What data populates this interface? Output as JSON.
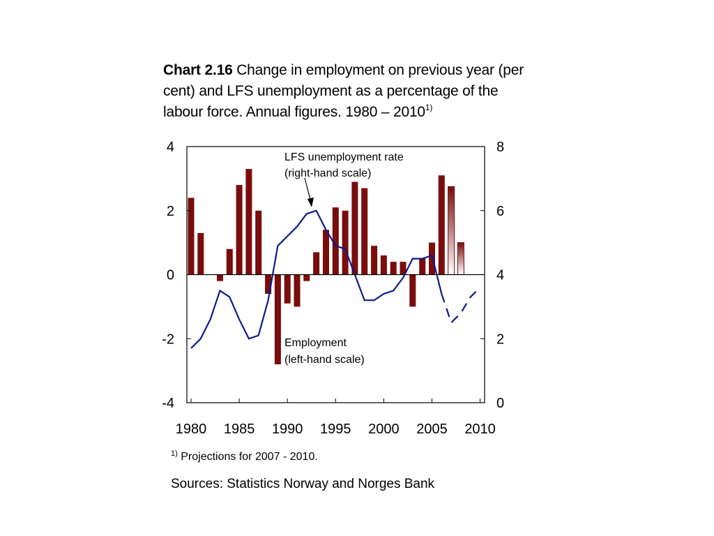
{
  "title": {
    "number": "Chart 2.16",
    "text": "Change in employment on previous year (per cent) and LFS unemployment as a percentage of the labour force. Annual figures. 1980 – 2010",
    "footnote_mark": "1)"
  },
  "footnote": {
    "mark": "1)",
    "text": "Projections for 2007 - 2010."
  },
  "sources": "Sources: Statistics Norway and Norges Bank",
  "colors": {
    "bar": "#7a0c0c",
    "line": "#0a1a8c"
  },
  "chart_data": {
    "type": "bar+line",
    "x_ticks": [
      "1980",
      "1985",
      "1990",
      "1995",
      "2000",
      "2005",
      "2010"
    ],
    "left_axis": {
      "ticks": [
        "4",
        "2",
        "0",
        "-2",
        "-4"
      ],
      "ylim": [
        -4,
        4
      ]
    },
    "right_axis": {
      "ticks": [
        "8",
        "6",
        "4",
        "2",
        "0"
      ],
      "ylim": [
        0,
        8
      ]
    },
    "annotations": {
      "line": [
        "LFS unemployment rate",
        "(right-hand scale)"
      ],
      "bars": [
        "Employment",
        "(left-hand scale)"
      ]
    },
    "projection_from": 2007,
    "series": [
      {
        "name": "Employment",
        "axis": "left",
        "kind": "bar",
        "x": [
          1980,
          1981,
          1982,
          1983,
          1984,
          1985,
          1986,
          1987,
          1988,
          1989,
          1990,
          1991,
          1992,
          1993,
          1994,
          1995,
          1996,
          1997,
          1998,
          1999,
          2000,
          2001,
          2002,
          2003,
          2004,
          2005,
          2006,
          2007,
          2008
        ],
        "values": [
          2.4,
          1.3,
          0,
          -0.2,
          0.8,
          2.8,
          3.3,
          2.0,
          -0.6,
          -2.8,
          -0.9,
          -1.0,
          -0.2,
          0.7,
          1.4,
          2.1,
          2.0,
          2.9,
          2.7,
          0.9,
          0.6,
          0.4,
          0.4,
          -1.0,
          0.5,
          1.0,
          3.1,
          2.75,
          1.0
        ]
      },
      {
        "name": "LFS unemployment rate",
        "axis": "right",
        "kind": "line",
        "x": [
          1980,
          1981,
          1982,
          1983,
          1984,
          1985,
          1986,
          1987,
          1988,
          1989,
          1990,
          1991,
          1992,
          1993,
          1994,
          1995,
          1996,
          1997,
          1998,
          1999,
          2000,
          2001,
          2002,
          2003,
          2004,
          2005,
          2006,
          2007,
          2008,
          2009,
          2010
        ],
        "values": [
          1.7,
          2.0,
          2.6,
          3.5,
          3.3,
          2.6,
          2.0,
          2.1,
          3.2,
          4.9,
          5.2,
          5.5,
          5.9,
          6.0,
          5.4,
          4.9,
          4.8,
          4.0,
          3.2,
          3.2,
          3.4,
          3.5,
          3.9,
          4.5,
          4.5,
          4.6,
          3.4,
          2.5,
          2.8,
          3.3,
          3.6
        ]
      }
    ]
  }
}
